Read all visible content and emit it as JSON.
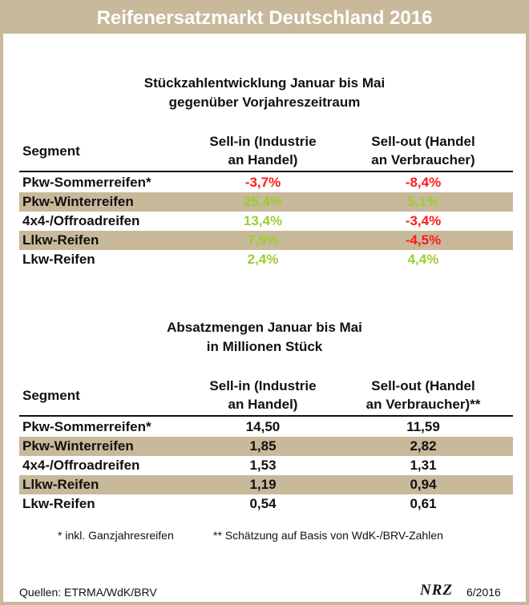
{
  "title": "Reifenersatzmarkt Deutschland 2016",
  "section1": {
    "title_line1": "Stückzahlentwicklung Januar bis Mai",
    "title_line2": "gegenüber Vorjahreszeitraum",
    "header": {
      "segment": "Segment",
      "sellin_line1": "Sell-in (Industrie",
      "sellin_line2": "an Handel)",
      "sellout_line1": "Sell-out (Handel",
      "sellout_line2": "an Verbraucher)"
    },
    "rows": [
      {
        "segment": "Pkw-Sommerreifen*",
        "sellin": "-3,7%",
        "sellout": "-8,4%"
      },
      {
        "segment": "Pkw-Winterreifen",
        "sellin": "25,4%",
        "sellout": "5,1%"
      },
      {
        "segment": "4x4-/Offroadreifen",
        "sellin": "13,4%",
        "sellout": "-3,4%"
      },
      {
        "segment": "Llkw-Reifen",
        "sellin": "7,9%",
        "sellout": "-4,5%"
      },
      {
        "segment": "Lkw-Reifen",
        "sellin": "2,4%",
        "sellout": "4,4%"
      }
    ]
  },
  "section2": {
    "title_line1": "Absatzmengen Januar bis Mai",
    "title_line2": "in Millionen Stück",
    "header": {
      "segment": "Segment",
      "sellin_line1": "Sell-in (Industrie",
      "sellin_line2": "an Handel)",
      "sellout_line1": "Sell-out (Handel",
      "sellout_line2": "an Verbraucher)**"
    },
    "rows": [
      {
        "segment": "Pkw-Sommerreifen*",
        "sellin": "14,50",
        "sellout": "11,59"
      },
      {
        "segment": "Pkw-Winterreifen",
        "sellin": "1,85",
        "sellout": "2,82"
      },
      {
        "segment": "4x4-/Offroadreifen",
        "sellin": "1,53",
        "sellout": "1,31"
      },
      {
        "segment": "Llkw-Reifen",
        "sellin": "1,19",
        "sellout": "0,94"
      },
      {
        "segment": "Lkw-Reifen",
        "sellin": "0,54",
        "sellout": "0,61"
      }
    ]
  },
  "footnotes": {
    "note1": "* inkl. Ganzjahresreifen",
    "note2": "** Schätzung auf Basis von WdK-/BRV-Zahlen"
  },
  "footer": {
    "sources": "Quellen: ETRMA/WdK/BRV",
    "logo": "NRZ",
    "date": "6/2016"
  },
  "colors": {
    "accent": "#c8b99a",
    "positive": "#9acd32",
    "negative": "#ff1a1a"
  }
}
